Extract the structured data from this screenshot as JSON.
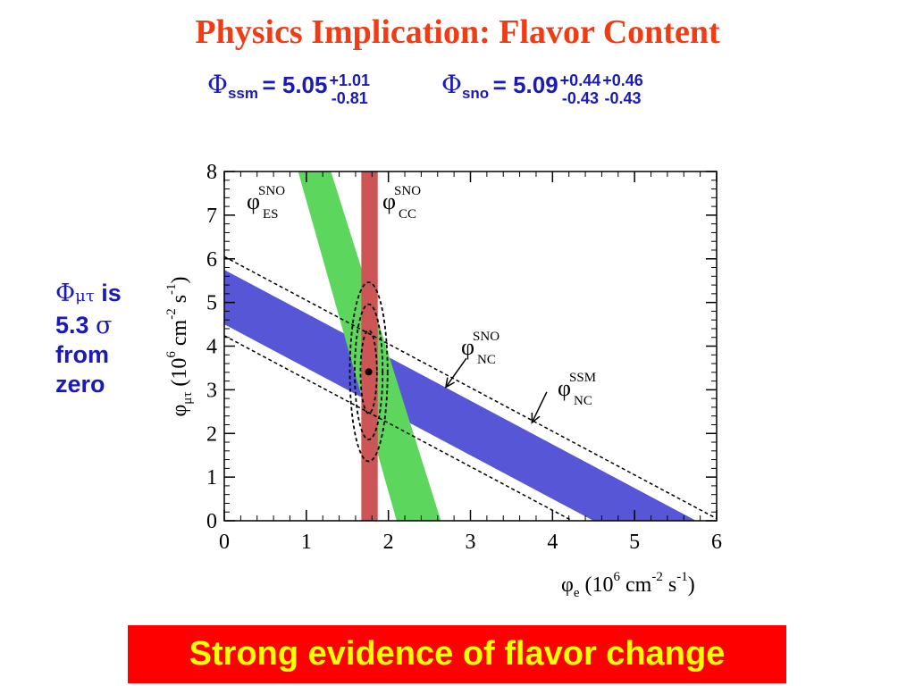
{
  "title": "Physics Implication: Flavor Content",
  "flux_ssm": {
    "symbol": "Φ",
    "subscript": "ssm",
    "equals": "= 5.05",
    "err_plus": "+1.01",
    "err_minus": "-0.81"
  },
  "flux_sno": {
    "symbol": "Φ",
    "subscript": "sno",
    "equals": "= 5.09",
    "stat_plus": "+0.44",
    "stat_minus": "-0.43",
    "syst_plus": "+0.46",
    "syst_minus": "-0.43"
  },
  "side_note": {
    "symbol": "Φ",
    "subscript": "μτ",
    "line1_suffix": " is",
    "line2": "5.3 ",
    "line2_symbol": "σ",
    "line3": "from",
    "line4": "zero"
  },
  "banner": "Strong evidence of flavor change",
  "chart_data": {
    "type": "band-plot",
    "xlim": [
      0,
      6
    ],
    "ylim": [
      0,
      8
    ],
    "x_ticks": [
      0,
      1,
      2,
      3,
      4,
      5,
      6
    ],
    "y_ticks": [
      0,
      1,
      2,
      3,
      4,
      5,
      6,
      7,
      8
    ],
    "xlabel": {
      "phi": "φ",
      "sub": "e",
      "pre": " (10",
      "exp6": "6",
      "cm": " cm",
      "exp_m2": "-2",
      "s": " s",
      "exp_m1": "-1",
      "close": ")"
    },
    "ylabel": {
      "phi": "φ",
      "sub": "μτ",
      "pre": " (10",
      "exp6": "6",
      "cm": " cm",
      "exp_m2": "-2",
      "s": " s",
      "exp_m1": "-1",
      "close": ")"
    },
    "colors": {
      "es_band": "#5cd65c",
      "cc_band": "#cc5555",
      "nc_band": "#5656d6",
      "ssm": "#000000",
      "axis": "#000000"
    },
    "labels": {
      "es": {
        "sym": "φ",
        "sup": "SNO",
        "sub": "ES"
      },
      "cc": {
        "sym": "φ",
        "sup": "SNO",
        "sub": "CC"
      },
      "nc": {
        "sym": "φ",
        "sup": "SNO",
        "sub": "NC"
      },
      "ssm": {
        "sym": "φ",
        "sup": "SSM",
        "sub": "NC"
      }
    },
    "bands": {
      "cc": {
        "x_min": 1.67,
        "x_max": 1.87
      },
      "es": {
        "top": [
          [
            0.9,
            8.0
          ],
          [
            1.3,
            8.0
          ]
        ],
        "bottom": [
          [
            2.1,
            0.0
          ],
          [
            2.64,
            0.0
          ]
        ]
      },
      "nc": {
        "x_intercepts": [
          4.5,
          5.75
        ],
        "y_intercepts": [
          4.5,
          5.75
        ]
      },
      "ssm": {
        "intercepts": [
          4.24,
          6.05
        ]
      }
    },
    "best_fit": {
      "x": 1.76,
      "y": 3.41
    },
    "contours": [
      {
        "cx": 1.76,
        "cy": 3.41,
        "rx": 0.1,
        "ry": 0.95
      },
      {
        "cx": 1.76,
        "cy": 3.41,
        "rx": 0.17,
        "ry": 1.55
      },
      {
        "cx": 1.76,
        "cy": 3.41,
        "rx": 0.23,
        "ry": 2.05
      }
    ],
    "arrows": [
      {
        "from": [
          2.95,
          3.72
        ],
        "to": [
          2.7,
          3.06
        ]
      },
      {
        "from": [
          3.93,
          2.95
        ],
        "to": [
          3.75,
          2.25
        ]
      }
    ]
  }
}
